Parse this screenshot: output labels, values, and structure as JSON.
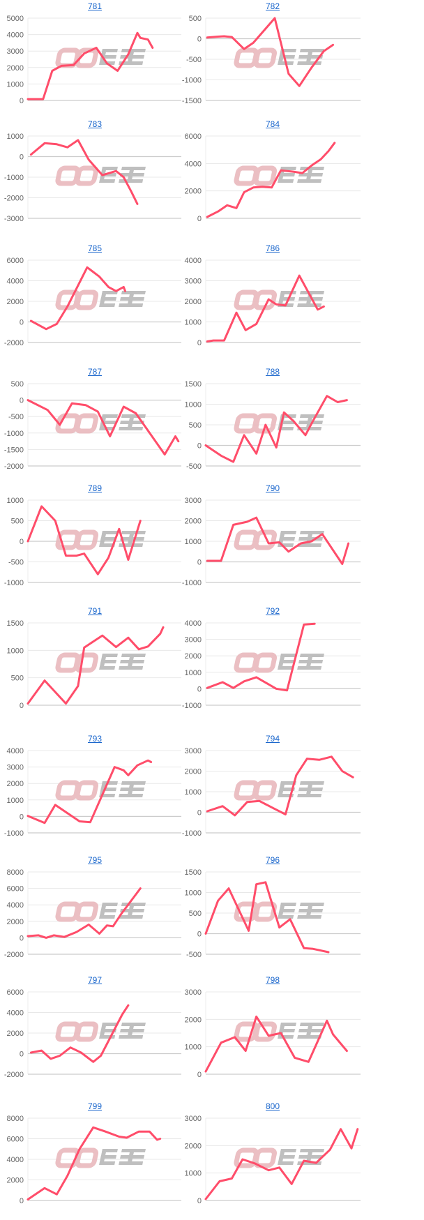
{
  "watermark": "みんぽ",
  "colors": {
    "line": "#ff4d6a",
    "grid": "#e8e8e8",
    "zero": "#cccccc",
    "tick": "#666666",
    "title": "#1a66cc",
    "wm_pink": "#e9b9bd",
    "wm_gray": "#b9b9b9"
  },
  "chart_data": [
    {
      "type": "line",
      "title": "781",
      "ylim": [
        0,
        5000
      ],
      "ticks": [
        5000,
        4000,
        3000,
        2000,
        1000,
        0
      ],
      "xlim": [
        0,
        100
      ],
      "points": [
        [
          0,
          80
        ],
        [
          10,
          80
        ],
        [
          16,
          1800
        ],
        [
          22,
          2100
        ],
        [
          30,
          2150
        ],
        [
          37,
          2850
        ],
        [
          45,
          3200
        ],
        [
          52,
          2250
        ],
        [
          59,
          1800
        ],
        [
          66,
          2800
        ],
        [
          72,
          4100
        ],
        [
          74,
          3800
        ],
        [
          79,
          3700
        ],
        [
          82,
          3200
        ]
      ]
    },
    {
      "type": "line",
      "title": "782",
      "ylim": [
        -1500,
        500
      ],
      "ticks": [
        500,
        0,
        -500,
        -1000,
        -1500
      ],
      "xlim": [
        0,
        100
      ],
      "points": [
        [
          1,
          30
        ],
        [
          8,
          50
        ],
        [
          12,
          60
        ],
        [
          17,
          40
        ],
        [
          25,
          -250
        ],
        [
          31,
          -100
        ],
        [
          45,
          500
        ],
        [
          54,
          -850
        ],
        [
          61,
          -1150
        ],
        [
          69,
          -700
        ],
        [
          77,
          -300
        ],
        [
          83,
          -150
        ]
      ]
    },
    {
      "type": "line",
      "title": "783",
      "ylim": [
        -3000,
        1000
      ],
      "ticks": [
        1000,
        0,
        -1000,
        -2000,
        -3000
      ],
      "xlim": [
        0,
        100
      ],
      "points": [
        [
          2,
          100
        ],
        [
          11,
          650
        ],
        [
          19,
          600
        ],
        [
          26,
          450
        ],
        [
          33,
          800
        ],
        [
          40,
          -150
        ],
        [
          49,
          -900
        ],
        [
          58,
          -700
        ],
        [
          63,
          -1000
        ],
        [
          68,
          -1700
        ],
        [
          72,
          -2300
        ]
      ]
    },
    {
      "type": "line",
      "title": "784",
      "ylim": [
        0,
        6000
      ],
      "ticks": [
        6000,
        4000,
        2000,
        0
      ],
      "xlim": [
        0,
        100
      ],
      "points": [
        [
          1,
          100
        ],
        [
          8,
          500
        ],
        [
          14,
          950
        ],
        [
          20,
          750
        ],
        [
          25,
          1900
        ],
        [
          31,
          2250
        ],
        [
          37,
          2300
        ],
        [
          43,
          2250
        ],
        [
          49,
          3500
        ],
        [
          57,
          3400
        ],
        [
          63,
          3300
        ],
        [
          69,
          3850
        ],
        [
          75,
          4300
        ],
        [
          80,
          4900
        ],
        [
          84,
          5500
        ]
      ]
    },
    {
      "type": "line",
      "title": "785",
      "ylim": [
        -2000,
        6000
      ],
      "ticks": [
        6000,
        4000,
        2000,
        0,
        -2000
      ],
      "xlim": [
        0,
        100
      ],
      "points": [
        [
          2,
          100
        ],
        [
          12,
          -700
        ],
        [
          19,
          -200
        ],
        [
          26,
          1500
        ],
        [
          39,
          5300
        ],
        [
          47,
          4400
        ],
        [
          53,
          3400
        ],
        [
          58,
          3000
        ],
        [
          63,
          3400
        ],
        [
          64,
          3000
        ]
      ]
    },
    {
      "type": "line",
      "title": "786",
      "ylim": [
        0,
        4000
      ],
      "ticks": [
        4000,
        3000,
        2000,
        1000,
        0
      ],
      "xlim": [
        0,
        100
      ],
      "points": [
        [
          1,
          50
        ],
        [
          5,
          100
        ],
        [
          12,
          100
        ],
        [
          20,
          1450
        ],
        [
          26,
          600
        ],
        [
          33,
          900
        ],
        [
          41,
          2100
        ],
        [
          46,
          1850
        ],
        [
          52,
          1800
        ],
        [
          61,
          3250
        ],
        [
          73,
          1600
        ],
        [
          77,
          1750
        ]
      ]
    },
    {
      "type": "line",
      "title": "787",
      "ylim": [
        -2000,
        500
      ],
      "ticks": [
        500,
        0,
        -500,
        -1000,
        -1500,
        -2000
      ],
      "xlim": [
        0,
        100
      ],
      "points": [
        [
          0,
          0
        ],
        [
          13,
          -300
        ],
        [
          21,
          -750
        ],
        [
          29,
          -100
        ],
        [
          38,
          -150
        ],
        [
          46,
          -350
        ],
        [
          54,
          -1100
        ],
        [
          63,
          -200
        ],
        [
          71,
          -400
        ],
        [
          90,
          -1650
        ],
        [
          97,
          -1100
        ],
        [
          99,
          -1250
        ]
      ]
    },
    {
      "type": "line",
      "title": "788",
      "ylim": [
        -500,
        1500
      ],
      "ticks": [
        1500,
        1000,
        500,
        0,
        -500
      ],
      "xlim": [
        0,
        100
      ],
      "points": [
        [
          0,
          0
        ],
        [
          10,
          -250
        ],
        [
          18,
          -400
        ],
        [
          25,
          250
        ],
        [
          33,
          -200
        ],
        [
          39,
          500
        ],
        [
          46,
          -50
        ],
        [
          51,
          800
        ],
        [
          57,
          600
        ],
        [
          65,
          250
        ],
        [
          70,
          600
        ],
        [
          79,
          1200
        ],
        [
          86,
          1050
        ],
        [
          92,
          1100
        ]
      ]
    },
    {
      "type": "line",
      "title": "789",
      "ylim": [
        -1000,
        1000
      ],
      "ticks": [
        1000,
        500,
        0,
        -500,
        -1000
      ],
      "xlim": [
        0,
        100
      ],
      "points": [
        [
          0,
          0
        ],
        [
          9,
          850
        ],
        [
          18,
          500
        ],
        [
          25,
          -350
        ],
        [
          32,
          -350
        ],
        [
          37,
          -300
        ],
        [
          46,
          -800
        ],
        [
          53,
          -400
        ],
        [
          60,
          300
        ],
        [
          66,
          -450
        ],
        [
          74,
          500
        ]
      ]
    },
    {
      "type": "line",
      "title": "790",
      "ylim": [
        -1000,
        3000
      ],
      "ticks": [
        3000,
        2000,
        1000,
        0,
        -1000
      ],
      "xlim": [
        0,
        100
      ],
      "points": [
        [
          1,
          50
        ],
        [
          10,
          50
        ],
        [
          18,
          1800
        ],
        [
          27,
          1950
        ],
        [
          33,
          2150
        ],
        [
          41,
          900
        ],
        [
          48,
          950
        ],
        [
          54,
          500
        ],
        [
          62,
          900
        ],
        [
          69,
          1000
        ],
        [
          76,
          1350
        ],
        [
          89,
          -100
        ],
        [
          93,
          900
        ]
      ]
    },
    {
      "type": "line",
      "title": "791",
      "ylim": [
        0,
        1500
      ],
      "ticks": [
        1500,
        1000,
        500,
        0
      ],
      "xlim": [
        0,
        100
      ],
      "points": [
        [
          0,
          30
        ],
        [
          11,
          450
        ],
        [
          25,
          30
        ],
        [
          33,
          350
        ],
        [
          37,
          1050
        ],
        [
          49,
          1270
        ],
        [
          58,
          1060
        ],
        [
          66,
          1230
        ],
        [
          73,
          1020
        ],
        [
          79,
          1070
        ],
        [
          87,
          1300
        ],
        [
          89,
          1420
        ]
      ]
    },
    {
      "type": "line",
      "title": "792",
      "ylim": [
        -1000,
        4000
      ],
      "ticks": [
        4000,
        3000,
        2000,
        1000,
        0,
        -1000
      ],
      "xlim": [
        0,
        100
      ],
      "points": [
        [
          1,
          50
        ],
        [
          11,
          400
        ],
        [
          18,
          50
        ],
        [
          25,
          450
        ],
        [
          33,
          700
        ],
        [
          46,
          0
        ],
        [
          53,
          -100
        ],
        [
          64,
          3900
        ],
        [
          71,
          3950
        ]
      ]
    },
    {
      "type": "line",
      "title": "793",
      "ylim": [
        -1000,
        4000
      ],
      "ticks": [
        4000,
        3000,
        2000,
        1000,
        0,
        -1000
      ],
      "xlim": [
        0,
        100
      ],
      "points": [
        [
          0,
          30
        ],
        [
          11,
          -400
        ],
        [
          18,
          700
        ],
        [
          34,
          -300
        ],
        [
          41,
          -350
        ],
        [
          57,
          3000
        ],
        [
          63,
          2800
        ],
        [
          66,
          2500
        ],
        [
          72,
          3100
        ],
        [
          79,
          3400
        ],
        [
          81,
          3300
        ]
      ]
    },
    {
      "type": "line",
      "title": "794",
      "ylim": [
        -1000,
        3000
      ],
      "ticks": [
        3000,
        2000,
        1000,
        0,
        -1000
      ],
      "xlim": [
        0,
        100
      ],
      "points": [
        [
          1,
          50
        ],
        [
          11,
          300
        ],
        [
          19,
          -150
        ],
        [
          27,
          500
        ],
        [
          35,
          550
        ],
        [
          44,
          200
        ],
        [
          52,
          -100
        ],
        [
          59,
          1800
        ],
        [
          66,
          2600
        ],
        [
          74,
          2550
        ],
        [
          82,
          2700
        ],
        [
          89,
          2000
        ],
        [
          96,
          1700
        ]
      ]
    },
    {
      "type": "line",
      "title": "795",
      "ylim": [
        -2000,
        8000
      ],
      "ticks": [
        8000,
        6000,
        4000,
        2000,
        0,
        -2000
      ],
      "xlim": [
        0,
        100
      ],
      "points": [
        [
          0,
          200
        ],
        [
          7,
          300
        ],
        [
          12,
          0
        ],
        [
          17,
          300
        ],
        [
          24,
          100
        ],
        [
          32,
          700
        ],
        [
          40,
          1600
        ],
        [
          47,
          500
        ],
        [
          52,
          1500
        ],
        [
          56,
          1400
        ],
        [
          61,
          2800
        ],
        [
          74,
          6000
        ]
      ]
    },
    {
      "type": "line",
      "title": "796",
      "ylim": [
        -500,
        1500
      ],
      "ticks": [
        1500,
        1000,
        500,
        0,
        -500
      ],
      "xlim": [
        0,
        100
      ],
      "points": [
        [
          0,
          0
        ],
        [
          8,
          800
        ],
        [
          15,
          1100
        ],
        [
          28,
          70
        ],
        [
          33,
          1200
        ],
        [
          39,
          1250
        ],
        [
          48,
          150
        ],
        [
          55,
          350
        ],
        [
          64,
          -350
        ],
        [
          70,
          -370
        ],
        [
          80,
          -450
        ]
      ]
    },
    {
      "type": "line",
      "title": "797",
      "ylim": [
        -2000,
        6000
      ],
      "ticks": [
        6000,
        4000,
        2000,
        0,
        -2000
      ],
      "xlim": [
        0,
        100
      ],
      "points": [
        [
          2,
          100
        ],
        [
          9,
          300
        ],
        [
          15,
          -500
        ],
        [
          21,
          -200
        ],
        [
          28,
          600
        ],
        [
          35,
          100
        ],
        [
          43,
          -800
        ],
        [
          48,
          -200
        ],
        [
          55,
          1800
        ],
        [
          62,
          3800
        ],
        [
          66,
          4700
        ]
      ]
    },
    {
      "type": "line",
      "title": "798",
      "ylim": [
        0,
        3000
      ],
      "ticks": [
        3000,
        2000,
        1000,
        0
      ],
      "xlim": [
        0,
        100
      ],
      "points": [
        [
          0,
          100
        ],
        [
          10,
          1150
        ],
        [
          19,
          1350
        ],
        [
          26,
          850
        ],
        [
          33,
          2100
        ],
        [
          41,
          1400
        ],
        [
          49,
          1500
        ],
        [
          58,
          600
        ],
        [
          67,
          450
        ],
        [
          73,
          1200
        ],
        [
          79,
          1950
        ],
        [
          83,
          1450
        ],
        [
          92,
          850
        ]
      ]
    },
    {
      "type": "line",
      "title": "799",
      "ylim": [
        0,
        8000
      ],
      "ticks": [
        8000,
        6000,
        4000,
        2000,
        0
      ],
      "xlim": [
        0,
        100
      ],
      "points": [
        [
          0,
          100
        ],
        [
          11,
          1200
        ],
        [
          19,
          600
        ],
        [
          26,
          2400
        ],
        [
          34,
          5000
        ],
        [
          43,
          7100
        ],
        [
          51,
          6700
        ],
        [
          60,
          6200
        ],
        [
          65,
          6100
        ],
        [
          73,
          6700
        ],
        [
          80,
          6700
        ],
        [
          85,
          5900
        ],
        [
          87,
          6000
        ]
      ]
    },
    {
      "type": "line",
      "title": "800",
      "ylim": [
        0,
        3000
      ],
      "ticks": [
        3000,
        2000,
        1000,
        0
      ],
      "xlim": [
        0,
        100
      ],
      "points": [
        [
          0,
          50
        ],
        [
          9,
          700
        ],
        [
          17,
          800
        ],
        [
          24,
          1500
        ],
        [
          32,
          1350
        ],
        [
          41,
          1100
        ],
        [
          48,
          1200
        ],
        [
          56,
          600
        ],
        [
          64,
          1450
        ],
        [
          72,
          1370
        ],
        [
          81,
          1850
        ],
        [
          88,
          2600
        ],
        [
          95,
          1900
        ],
        [
          99,
          2600
        ]
      ]
    }
  ]
}
